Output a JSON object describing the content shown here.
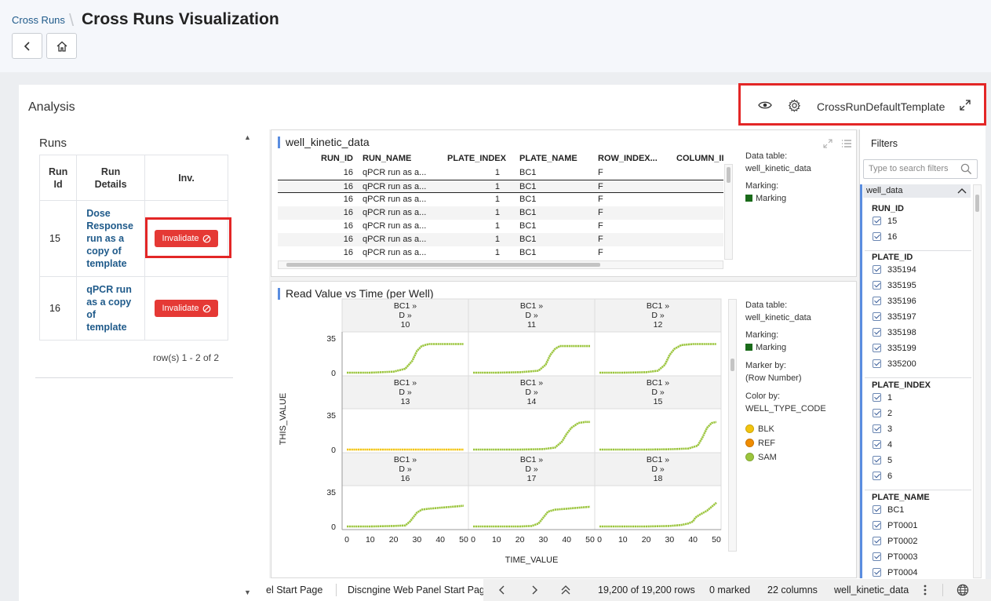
{
  "header": {
    "breadcrumb": "Cross Runs",
    "separator": "\\",
    "title": "Cross Runs Visualization",
    "back_icon": "chevron-left-icon",
    "home_icon": "home-icon"
  },
  "analysis": {
    "title": "Analysis",
    "toolbar": {
      "template_name": "CrossRunDefaultTemplate",
      "icons": [
        "eye-icon",
        "gear-icon",
        "expand-icon"
      ]
    }
  },
  "runs": {
    "title": "Runs",
    "columns": [
      "Run Id",
      "Run Details",
      "Inv."
    ],
    "rows": [
      {
        "id": "15",
        "details": "Dose Response run as a copy of template",
        "action": "Invalidate"
      },
      {
        "id": "16",
        "details": "qPCR run as a copy of template",
        "action": "Invalidate"
      }
    ],
    "row_count": "row(s) 1 - 2 of 2"
  },
  "data_table": {
    "title": "well_kinetic_data",
    "columns": [
      "RUN_ID",
      "RUN_NAME",
      "PLATE_INDEX",
      "PLATE_NAME",
      "ROW_INDEX...",
      "COLUMN_II"
    ],
    "rows": [
      [
        "16",
        "qPCR run as a...",
        "1",
        "BC1",
        "F"
      ],
      [
        "16",
        "qPCR run as a...",
        "1",
        "BC1",
        "F"
      ],
      [
        "16",
        "qPCR run as a...",
        "1",
        "BC1",
        "F"
      ],
      [
        "16",
        "qPCR run as a...",
        "1",
        "BC1",
        "F"
      ],
      [
        "16",
        "qPCR run as a...",
        "1",
        "BC1",
        "F"
      ],
      [
        "16",
        "qPCR run as a...",
        "1",
        "BC1",
        "F"
      ],
      [
        "16",
        "qPCR run as a...",
        "1",
        "BC1",
        "F"
      ]
    ],
    "info": {
      "data_table_label": "Data table:",
      "data_table_value": "well_kinetic_data",
      "marking_label": "Marking:",
      "marking_value": "Marking"
    }
  },
  "chart_panel": {
    "title": "Read Value vs Time (per Well)",
    "info": {
      "data_table_label": "Data table:",
      "data_table_value": "well_kinetic_data",
      "marking_label": "Marking:",
      "marking_value": "Marking",
      "marker_by_label": "Marker by:",
      "marker_by_value": "(Row Number)",
      "color_by_label": "Color by:",
      "color_by_value": "WELL_TYPE_CODE"
    },
    "legend": [
      {
        "name": "BLK",
        "color": "#f2c40f"
      },
      {
        "name": "REF",
        "color": "#f08c00"
      },
      {
        "name": "SAM",
        "color": "#9bc53d"
      }
    ]
  },
  "chart_data": {
    "type": "line",
    "xlabel": "TIME_VALUE",
    "ylabel": "THIS_VALUE",
    "xlim": [
      0,
      50
    ],
    "ylim": [
      0,
      35
    ],
    "x_ticks": [
      "0",
      "10",
      "20",
      "30",
      "40",
      "50"
    ],
    "y_ticks": [
      "0",
      "35"
    ],
    "trellis": [
      {
        "plate": "BC1 »",
        "row": "D »",
        "col": "10",
        "color": "#9bc53d",
        "x": [
          0,
          10,
          20,
          25,
          28,
          30,
          32,
          35,
          40,
          45,
          50
        ],
        "y": [
          0,
          0,
          1,
          4,
          12,
          22,
          27,
          29,
          29,
          29,
          29
        ]
      },
      {
        "plate": "BC1 »",
        "row": "D »",
        "col": "11",
        "color": "#9bc53d",
        "x": [
          0,
          10,
          20,
          28,
          31,
          33,
          35,
          37,
          40,
          45,
          50
        ],
        "y": [
          0,
          0,
          0.5,
          2,
          8,
          18,
          24,
          27,
          27,
          27,
          27
        ]
      },
      {
        "plate": "BC1 »",
        "row": "D »",
        "col": "12",
        "color": "#9bc53d",
        "x": [
          0,
          10,
          20,
          25,
          28,
          30,
          32,
          35,
          40,
          45,
          50
        ],
        "y": [
          0,
          0,
          0.5,
          2,
          8,
          18,
          24,
          28,
          29,
          29,
          29
        ]
      },
      {
        "plate": "BC1 »",
        "row": "D »",
        "col": "13",
        "color": "#f2c40f",
        "x": [
          0,
          10,
          20,
          30,
          40,
          50
        ],
        "y": [
          0,
          0,
          0,
          0,
          0,
          0
        ]
      },
      {
        "plate": "BC1 »",
        "row": "D »",
        "col": "14",
        "color": "#9bc53d",
        "x": [
          0,
          10,
          20,
          30,
          35,
          38,
          40,
          42,
          45,
          48,
          50
        ],
        "y": [
          0,
          0,
          0,
          0.5,
          2,
          8,
          16,
          22,
          27,
          28,
          28
        ]
      },
      {
        "plate": "BC1 »",
        "row": "D »",
        "col": "15",
        "color": "#9bc53d",
        "x": [
          0,
          10,
          20,
          30,
          38,
          42,
          44,
          46,
          48,
          50
        ],
        "y": [
          0,
          0,
          0,
          0.3,
          1,
          4,
          12,
          22,
          27,
          28
        ]
      },
      {
        "plate": "BC1 »",
        "row": "D »",
        "col": "16",
        "color": "#9bc53d",
        "x": [
          0,
          10,
          20,
          25,
          27,
          30,
          32,
          35,
          40,
          45,
          50
        ],
        "y": [
          0,
          0,
          0.5,
          1,
          5,
          14,
          17,
          18,
          19,
          20,
          21
        ]
      },
      {
        "plate": "BC1 »",
        "row": "D »",
        "col": "17",
        "color": "#9bc53d",
        "x": [
          0,
          10,
          20,
          25,
          28,
          30,
          32,
          35,
          40,
          45,
          50
        ],
        "y": [
          0,
          0,
          0,
          0.5,
          3,
          9,
          15,
          17,
          18,
          19,
          20
        ]
      },
      {
        "plate": "BC1 »",
        "row": "D »",
        "col": "18",
        "color": "#9bc53d",
        "x": [
          0,
          10,
          20,
          30,
          35,
          38,
          40,
          41,
          43,
          46,
          50
        ],
        "y": [
          0,
          0,
          0,
          0.5,
          1.5,
          3,
          5,
          9,
          12,
          16,
          24
        ]
      }
    ]
  },
  "filters": {
    "title": "Filters",
    "search_placeholder": "Type to search filters",
    "tab": "well_data",
    "groups": [
      {
        "name": "RUN_ID",
        "items": [
          "15",
          "16"
        ]
      },
      {
        "name": "PLATE_ID",
        "items": [
          "335194",
          "335195",
          "335196",
          "335197",
          "335198",
          "335199",
          "335200"
        ]
      },
      {
        "name": "PLATE_INDEX",
        "items": [
          "1",
          "2",
          "3",
          "4",
          "5",
          "6"
        ]
      },
      {
        "name": "PLATE_NAME",
        "items": [
          "BC1",
          "PT0001",
          "PT0002",
          "PT0003",
          "PT0004"
        ]
      }
    ]
  },
  "statusbar": {
    "page_tab_1": "el Start Page",
    "page_tab_2": "Discngine Web Panel Start Page",
    "rows": "19,200 of 19,200 rows",
    "marked": "0 marked",
    "columns": "22 columns",
    "table": "well_kinetic_data"
  }
}
